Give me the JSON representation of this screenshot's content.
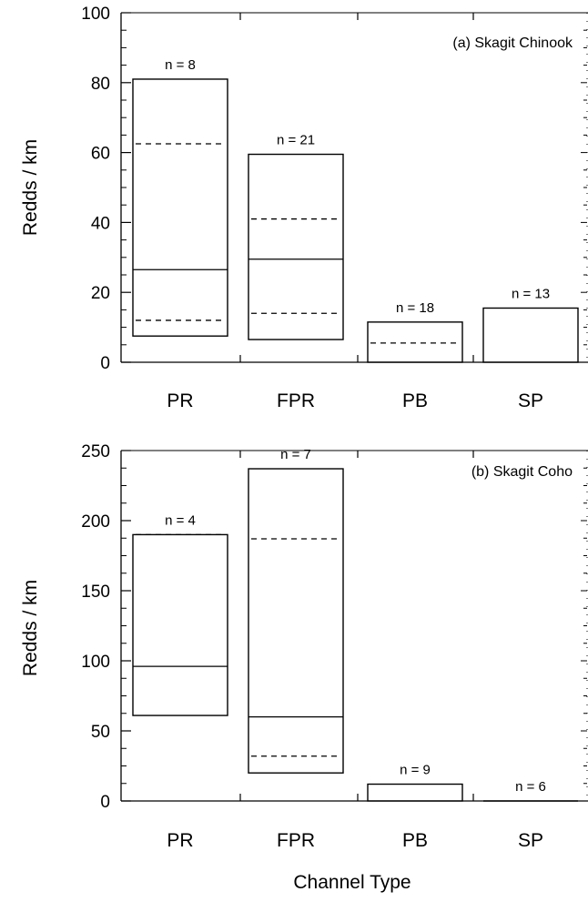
{
  "chart_data": [
    {
      "type": "box",
      "panel_label": "(a) Skagit Chinook",
      "ylabel": "Redds / km",
      "ylim": [
        0,
        100
      ],
      "yticks": [
        0,
        20,
        40,
        60,
        80,
        100
      ],
      "categories": [
        "PR",
        "FPR",
        "PB",
        "SP"
      ],
      "boxes": [
        {
          "category": "PR",
          "n_label": "n = 8",
          "max": 81,
          "p75": 62.5,
          "median": 26.5,
          "p25": 12,
          "min": 7.5
        },
        {
          "category": "FPR",
          "n_label": "n = 21",
          "max": 59.5,
          "p75": 41,
          "median": 29.5,
          "p25": 14,
          "min": 6.5
        },
        {
          "category": "PB",
          "n_label": "n = 18",
          "max": 11.5,
          "p75": 5.5,
          "median": 0,
          "p25": 0,
          "min": 0
        },
        {
          "category": "SP",
          "n_label": "n = 13",
          "max": 15.5,
          "p75": 0,
          "median": 0,
          "p25": 0,
          "min": 0
        }
      ]
    },
    {
      "type": "box",
      "panel_label": "(b) Skagit Coho",
      "ylabel": "Redds / km",
      "ylim": [
        0,
        250
      ],
      "yticks": [
        0,
        50,
        100,
        150,
        200,
        250
      ],
      "categories": [
        "PR",
        "FPR",
        "PB",
        "SP"
      ],
      "boxes": [
        {
          "category": "PR",
          "n_label": "n = 4",
          "max": 190,
          "p75": 190,
          "median": 96,
          "p25": 61,
          "min": 61
        },
        {
          "category": "FPR",
          "n_label": "n = 7",
          "max": 237,
          "p75": 187,
          "median": 60,
          "p25": 32,
          "min": 20
        },
        {
          "category": "PB",
          "n_label": "n = 9",
          "max": 12,
          "p75": 0,
          "median": 0,
          "p25": 0,
          "min": 0
        },
        {
          "category": "SP",
          "n_label": "n = 6",
          "max": 0,
          "p75": 0,
          "median": 0,
          "p25": 0,
          "min": 0
        }
      ]
    }
  ],
  "xlabel": "Channel Type"
}
